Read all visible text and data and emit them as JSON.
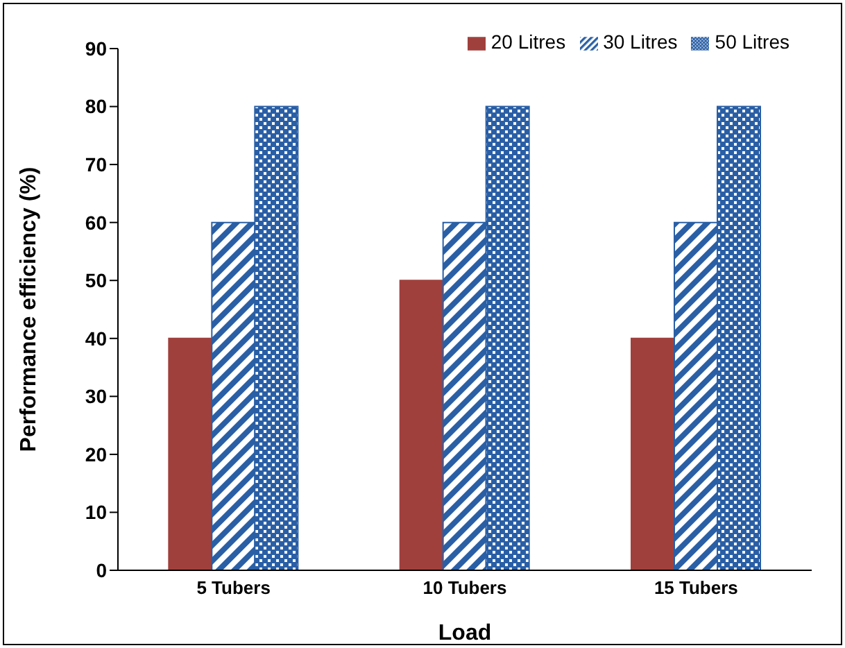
{
  "chart_data": {
    "type": "bar",
    "xlabel": "Load",
    "ylabel": "Performance efficiency  (%)",
    "categories": [
      "5 Tubers",
      "10 Tubers",
      "15 Tubers"
    ],
    "series": [
      {
        "name": "20 Litres",
        "color": "#a0403c",
        "values": [
          40,
          50,
          40
        ]
      },
      {
        "name": "30 Litres",
        "color": "#2a5fa5",
        "values": [
          60,
          60,
          60
        ]
      },
      {
        "name": "50 Litres",
        "color": "#2a5fa5",
        "values": [
          80,
          80,
          80
        ]
      }
    ],
    "ylim": [
      0,
      90
    ],
    "yticks": [
      0,
      10,
      20,
      30,
      40,
      50,
      60,
      70,
      80,
      90
    ],
    "grid": false,
    "legend": "top right"
  }
}
